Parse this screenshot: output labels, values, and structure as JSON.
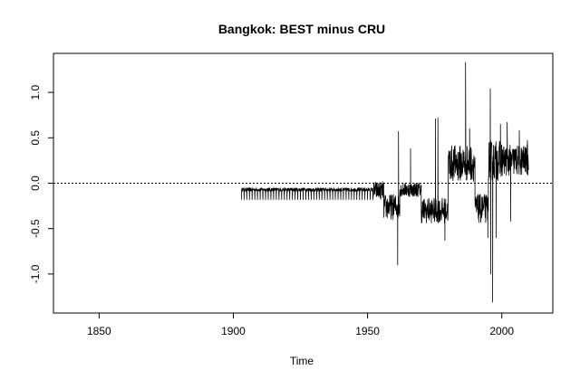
{
  "chart_data": {
    "type": "line",
    "title": "Bangkok: BEST minus CRU",
    "xlabel": "Time",
    "ylabel": "",
    "xlim": [
      1833,
      2019
    ],
    "ylim": [
      -1.43,
      1.43
    ],
    "x_ticks": [
      1850,
      1900,
      1950,
      2000
    ],
    "x_tick_labels": [
      "1850",
      "1900",
      "1950",
      "2000"
    ],
    "y_ticks": [
      -1.0,
      -0.5,
      0.0,
      0.5,
      1.0
    ],
    "y_tick_labels": [
      "-1.0",
      "-0.5",
      "0.0",
      "0.5",
      "1.0"
    ],
    "reference_line": {
      "y": 0,
      "style": "dotted"
    },
    "grid": false,
    "legend": "none",
    "line_color": "#000000",
    "series": [
      {
        "segments": [
          {
            "x_start": 1903,
            "x_end": 1952,
            "level": -0.07,
            "amplitude": 0.11,
            "pattern": "annual-sawtooth"
          },
          {
            "x_start": 1952,
            "x_end": 1956,
            "level": -0.08,
            "amplitude": 0.1,
            "pattern": "noisy"
          },
          {
            "x_start": 1956,
            "x_end": 1962,
            "level": -0.26,
            "amplitude": 0.14,
            "pattern": "noisy"
          },
          {
            "x_start": 1962,
            "x_end": 1970,
            "level": -0.07,
            "amplitude": 0.08,
            "pattern": "noisy"
          },
          {
            "x_start": 1970,
            "x_end": 1980,
            "level": -0.3,
            "amplitude": 0.14,
            "pattern": "noisy"
          },
          {
            "x_start": 1980,
            "x_end": 1990,
            "level": 0.22,
            "amplitude": 0.2,
            "pattern": "noisy"
          },
          {
            "x_start": 1990,
            "x_end": 1995,
            "level": -0.28,
            "amplitude": 0.16,
            "pattern": "noisy"
          },
          {
            "x_start": 1995,
            "x_end": 2000,
            "level": 0.25,
            "amplitude": 0.22,
            "pattern": "noisy"
          },
          {
            "x_start": 2000,
            "x_end": 2010,
            "level": 0.25,
            "amplitude": 0.17,
            "pattern": "noisy"
          }
        ],
        "spikes": [
          {
            "x": 1961.2,
            "y": -0.9
          },
          {
            "x": 1961.5,
            "y": 0.57
          },
          {
            "x": 1966.0,
            "y": 0.38
          },
          {
            "x": 1975.3,
            "y": 0.71
          },
          {
            "x": 1976.2,
            "y": 0.72
          },
          {
            "x": 1978.8,
            "y": -0.63
          },
          {
            "x": 1986.5,
            "y": 1.33
          },
          {
            "x": 1988.0,
            "y": 0.6
          },
          {
            "x": 1994.8,
            "y": -0.6
          },
          {
            "x": 1995.7,
            "y": 1.04
          },
          {
            "x": 1995.9,
            "y": -1.0
          },
          {
            "x": 1996.6,
            "y": -1.31
          },
          {
            "x": 1997.9,
            "y": -0.6
          },
          {
            "x": 1999.5,
            "y": 0.65
          },
          {
            "x": 2002.0,
            "y": 0.67
          },
          {
            "x": 2003.3,
            "y": -0.42
          },
          {
            "x": 2006.5,
            "y": 0.58
          },
          {
            "x": 2009.5,
            "y": 0.47
          }
        ]
      }
    ]
  }
}
